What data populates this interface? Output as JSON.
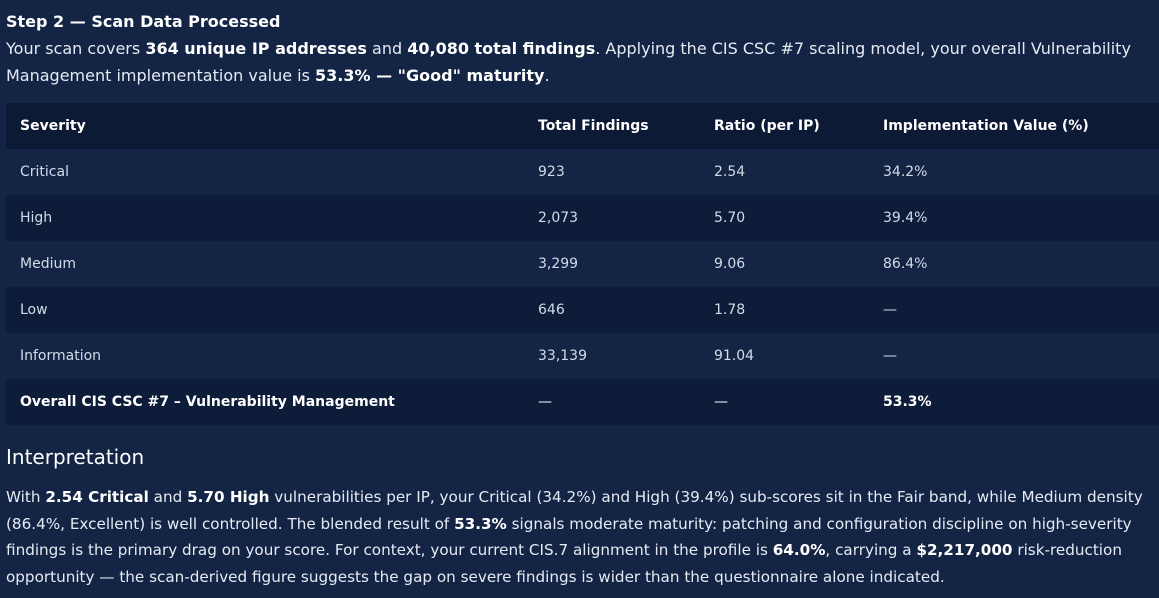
{
  "step": {
    "title": "Step 2 — Scan Data Processed"
  },
  "summary": {
    "t1": "Your scan covers ",
    "unique_ips": "364 unique IP addresses",
    "t2": " and ",
    "total_findings": "40,080 total findings",
    "t3": ". Applying the CIS CSC #7 scaling model, your overall Vulnerability Management implementation value is ",
    "overall_value": "53.3%",
    "t4": " — ",
    "maturity": "\"Good\" maturity",
    "t5": "."
  },
  "table": {
    "headers": [
      "Severity",
      "Total Findings",
      "Ratio (per IP)",
      "Implementation Value (%)"
    ],
    "rows": [
      {
        "severity": "Critical",
        "total": "923",
        "ratio": "2.54",
        "value": "34.2%"
      },
      {
        "severity": "High",
        "total": "2,073",
        "ratio": "5.70",
        "value": "39.4%"
      },
      {
        "severity": "Medium",
        "total": "3,299",
        "ratio": "9.06",
        "value": "86.4%"
      },
      {
        "severity": "Low",
        "total": "646",
        "ratio": "1.78",
        "value": "—"
      },
      {
        "severity": "Information",
        "total": "33,139",
        "ratio": "91.04",
        "value": "—"
      }
    ],
    "overall": {
      "label": "Overall CIS CSC #7 – Vulnerability Management",
      "total": "—",
      "ratio": "—",
      "value": "53.3%"
    }
  },
  "interpretation": {
    "title": "Interpretation",
    "t1": "With ",
    "critical_ratio": "2.54 Critical",
    "t2": " and ",
    "high_ratio": "5.70 High",
    "t3": " vulnerabilities per IP, your Critical (34.2%) and High (39.4%) sub-scores sit in the Fair band, while Medium density (86.4%, Excellent) is well controlled. The blended result of ",
    "blended": "53.3%",
    "t4": " signals moderate maturity: patching and configuration discipline on high-severity findings is the primary drag on your score. For context, your current CIS.7 alignment in the profile is ",
    "alignment": "64.0%",
    "t5": ", carrying a ",
    "opportunity": "$2,217,000",
    "t6": " risk-reduction opportunity — the scan-derived figure suggests the gap on severe findings is wider than the questionnaire alone indicated."
  }
}
